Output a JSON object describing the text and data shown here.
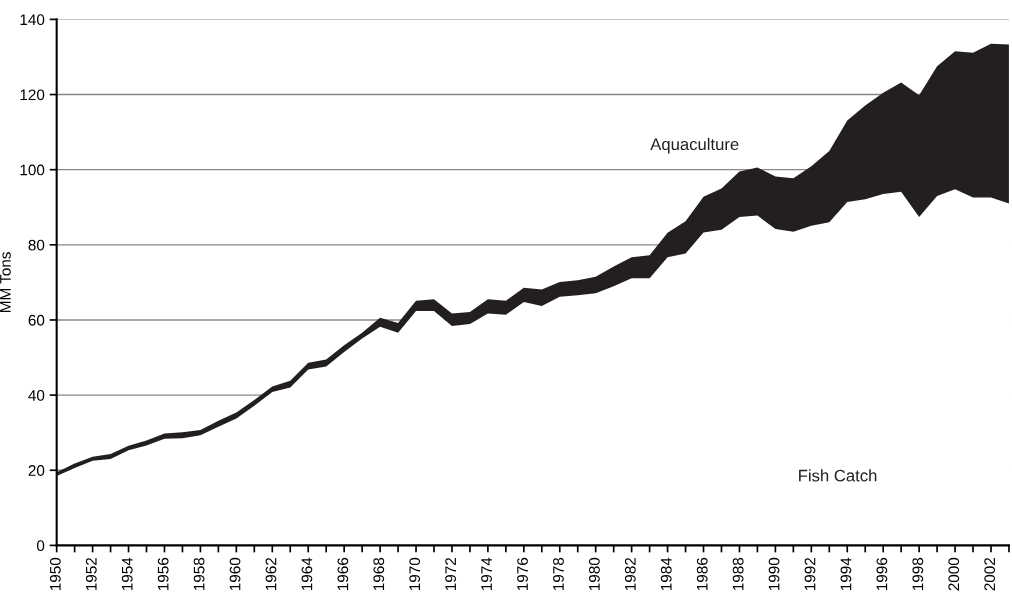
{
  "chart_data": {
    "type": "area",
    "stacked": true,
    "ylabel": "MM Tons",
    "x": [
      1950,
      1951,
      1952,
      1953,
      1954,
      1955,
      1956,
      1957,
      1958,
      1959,
      1960,
      1961,
      1962,
      1963,
      1964,
      1965,
      1966,
      1967,
      1968,
      1969,
      1970,
      1971,
      1972,
      1973,
      1974,
      1975,
      1976,
      1977,
      1978,
      1979,
      1980,
      1981,
      1982,
      1983,
      1984,
      1985,
      1986,
      1987,
      1988,
      1989,
      1990,
      1991,
      1992,
      1993,
      1994,
      1995,
      1996,
      1997,
      1998,
      1999,
      2000,
      2001,
      2002,
      2003
    ],
    "series": [
      {
        "name": "Fish Catch",
        "color": "#ffffff",
        "values": [
          18.5,
          20.6,
          22.5,
          23.0,
          25.3,
          26.6,
          28.4,
          28.5,
          29.3,
          31.6,
          33.8,
          37.2,
          40.8,
          42.0,
          46.8,
          47.6,
          51.5,
          55.1,
          58.2,
          56.6,
          62.4,
          62.4,
          58.4,
          58.9,
          61.7,
          61.4,
          64.8,
          63.7,
          66.2,
          66.6,
          67.1,
          69.0,
          71.1,
          71.1,
          76.7,
          77.7,
          83.3,
          84.0,
          87.4,
          87.8,
          84.2,
          83.5,
          85.1,
          86.0,
          91.4,
          92.1,
          93.5,
          94.1,
          87.4,
          93.0,
          94.8,
          92.6,
          92.6,
          91.0
        ]
      },
      {
        "name": "Aquaculture",
        "color": "#231f20",
        "values": [
          1.0,
          1.2,
          1.1,
          1.3,
          1.2,
          1.3,
          1.4,
          1.6,
          1.4,
          1.6,
          1.6,
          1.5,
          1.5,
          1.8,
          1.8,
          1.9,
          1.8,
          1.5,
          2.4,
          2.6,
          2.7,
          3.1,
          3.3,
          3.2,
          3.8,
          3.7,
          3.8,
          4.4,
          3.9,
          4.0,
          4.4,
          5.2,
          5.6,
          6.1,
          6.5,
          8.6,
          9.5,
          11.0,
          12.1,
          12.8,
          14.0,
          14.2,
          15.8,
          19.0,
          21.7,
          25.0,
          27.0,
          29.1,
          32.4,
          34.5,
          36.7,
          38.5,
          40.9,
          42.3
        ]
      }
    ],
    "xlim": [
      1950,
      2003
    ],
    "xticks": [
      1950,
      {
        "value": 1951,
        "label": null
      },
      1952,
      {
        "value": 1953,
        "label": null
      },
      1954,
      {
        "value": 1955,
        "label": null
      },
      1956,
      {
        "value": 1957,
        "label": null
      },
      1958,
      {
        "value": 1959,
        "label": null
      },
      1960,
      {
        "value": 1961,
        "label": null
      },
      1962,
      {
        "value": 1963,
        "label": null
      },
      1964,
      {
        "value": 1965,
        "label": null
      },
      1966,
      {
        "value": 1967,
        "label": null
      },
      1968,
      {
        "value": 1969,
        "label": null
      },
      1970,
      {
        "value": 1971,
        "label": null
      },
      1972,
      {
        "value": 1973,
        "label": null
      },
      1974,
      {
        "value": 1975,
        "label": null
      },
      1976,
      {
        "value": 1977,
        "label": null
      },
      1978,
      {
        "value": 1979,
        "label": null
      },
      1980,
      {
        "value": 1981,
        "label": null
      },
      1982,
      {
        "value": 1983,
        "label": null
      },
      1984,
      {
        "value": 1985,
        "label": null
      },
      1986,
      {
        "value": 1987,
        "label": null
      },
      1988,
      {
        "value": 1989,
        "label": null
      },
      1990,
      {
        "value": 1991,
        "label": null
      },
      1992,
      {
        "value": 1993,
        "label": null
      },
      1994,
      {
        "value": 1995,
        "label": null
      },
      1996,
      {
        "value": 1997,
        "label": null
      },
      1998,
      {
        "value": 1999,
        "label": null
      },
      2000,
      {
        "value": 2001,
        "label": null
      },
      2002,
      {
        "value": 2003,
        "label": null
      }
    ],
    "ylim": [
      0,
      140
    ],
    "yticks": [
      0,
      20,
      40,
      60,
      80,
      100,
      120,
      140
    ],
    "grid": "y"
  }
}
